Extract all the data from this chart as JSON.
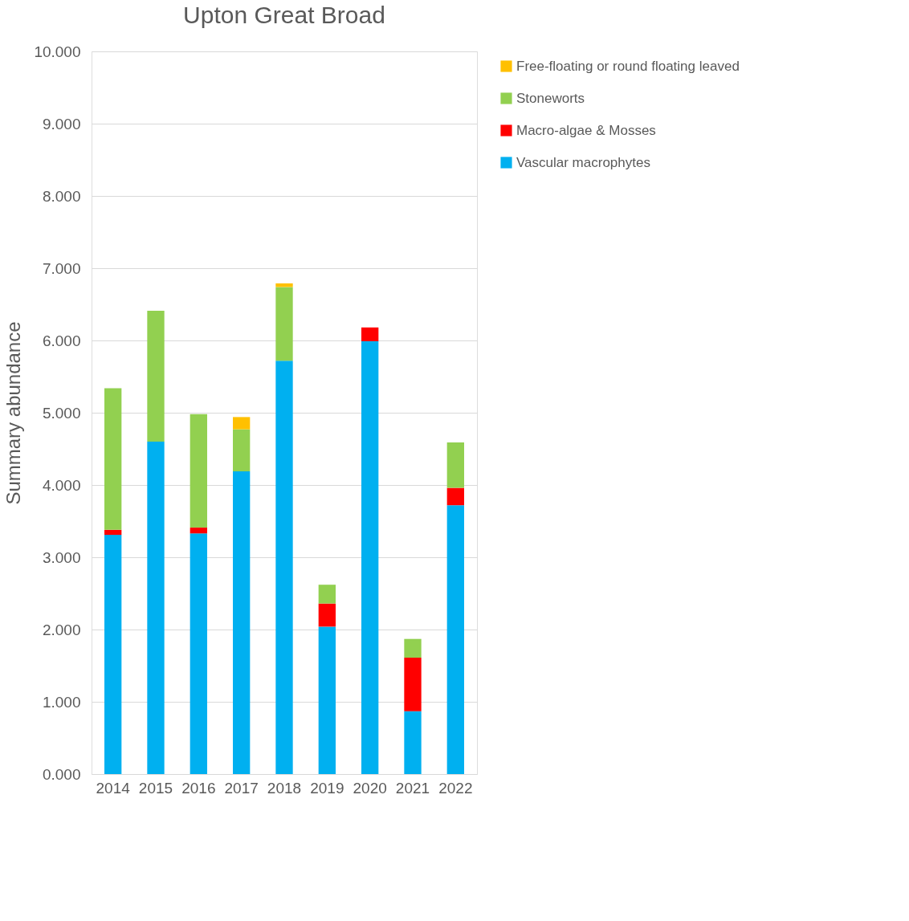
{
  "chart_data": {
    "type": "bar",
    "title": "Upton Great Broad",
    "ylabel": "Summary abundance",
    "categories": [
      "2014",
      "2015",
      "2016",
      "2017",
      "2018",
      "2019",
      "2020",
      "2021",
      "2022"
    ],
    "stacked": true,
    "series": [
      {
        "name": "Vascular macrophytes",
        "color": "#00b0f0",
        "values": [
          3.31,
          4.6,
          3.33,
          4.19,
          5.72,
          2.04,
          5.99,
          0.87,
          3.72
        ]
      },
      {
        "name": "Macro-algae & Mosses",
        "color": "#ff0000",
        "values": [
          0.07,
          null,
          0.08,
          null,
          null,
          0.32,
          0.19,
          0.74,
          0.24
        ]
      },
      {
        "name": "Stoneworts",
        "color": "#92d050",
        "values": [
          1.96,
          1.81,
          1.57,
          0.58,
          1.02,
          0.26,
          null,
          0.26,
          0.63
        ]
      },
      {
        "name": "Free-floating or round floating leaved",
        "color": "#ffc000",
        "values": [
          null,
          null,
          null,
          0.17,
          0.05,
          null,
          null,
          null,
          null
        ]
      }
    ],
    "ylim": [
      0,
      10
    ],
    "yticks": [
      {
        "value": 0,
        "label": "0.000"
      },
      {
        "value": 1,
        "label": "1.000"
      },
      {
        "value": 2,
        "label": "2.000"
      },
      {
        "value": 3,
        "label": "3.000"
      },
      {
        "value": 4,
        "label": "4.000"
      },
      {
        "value": 5,
        "label": "5.000"
      },
      {
        "value": 6,
        "label": "6.000"
      },
      {
        "value": 7,
        "label": "7.000"
      },
      {
        "value": 8,
        "label": "8.000"
      },
      {
        "value": 9,
        "label": "9.000"
      },
      {
        "value": 10,
        "label": "10.000"
      }
    ],
    "grid": "y",
    "legend": "right"
  }
}
